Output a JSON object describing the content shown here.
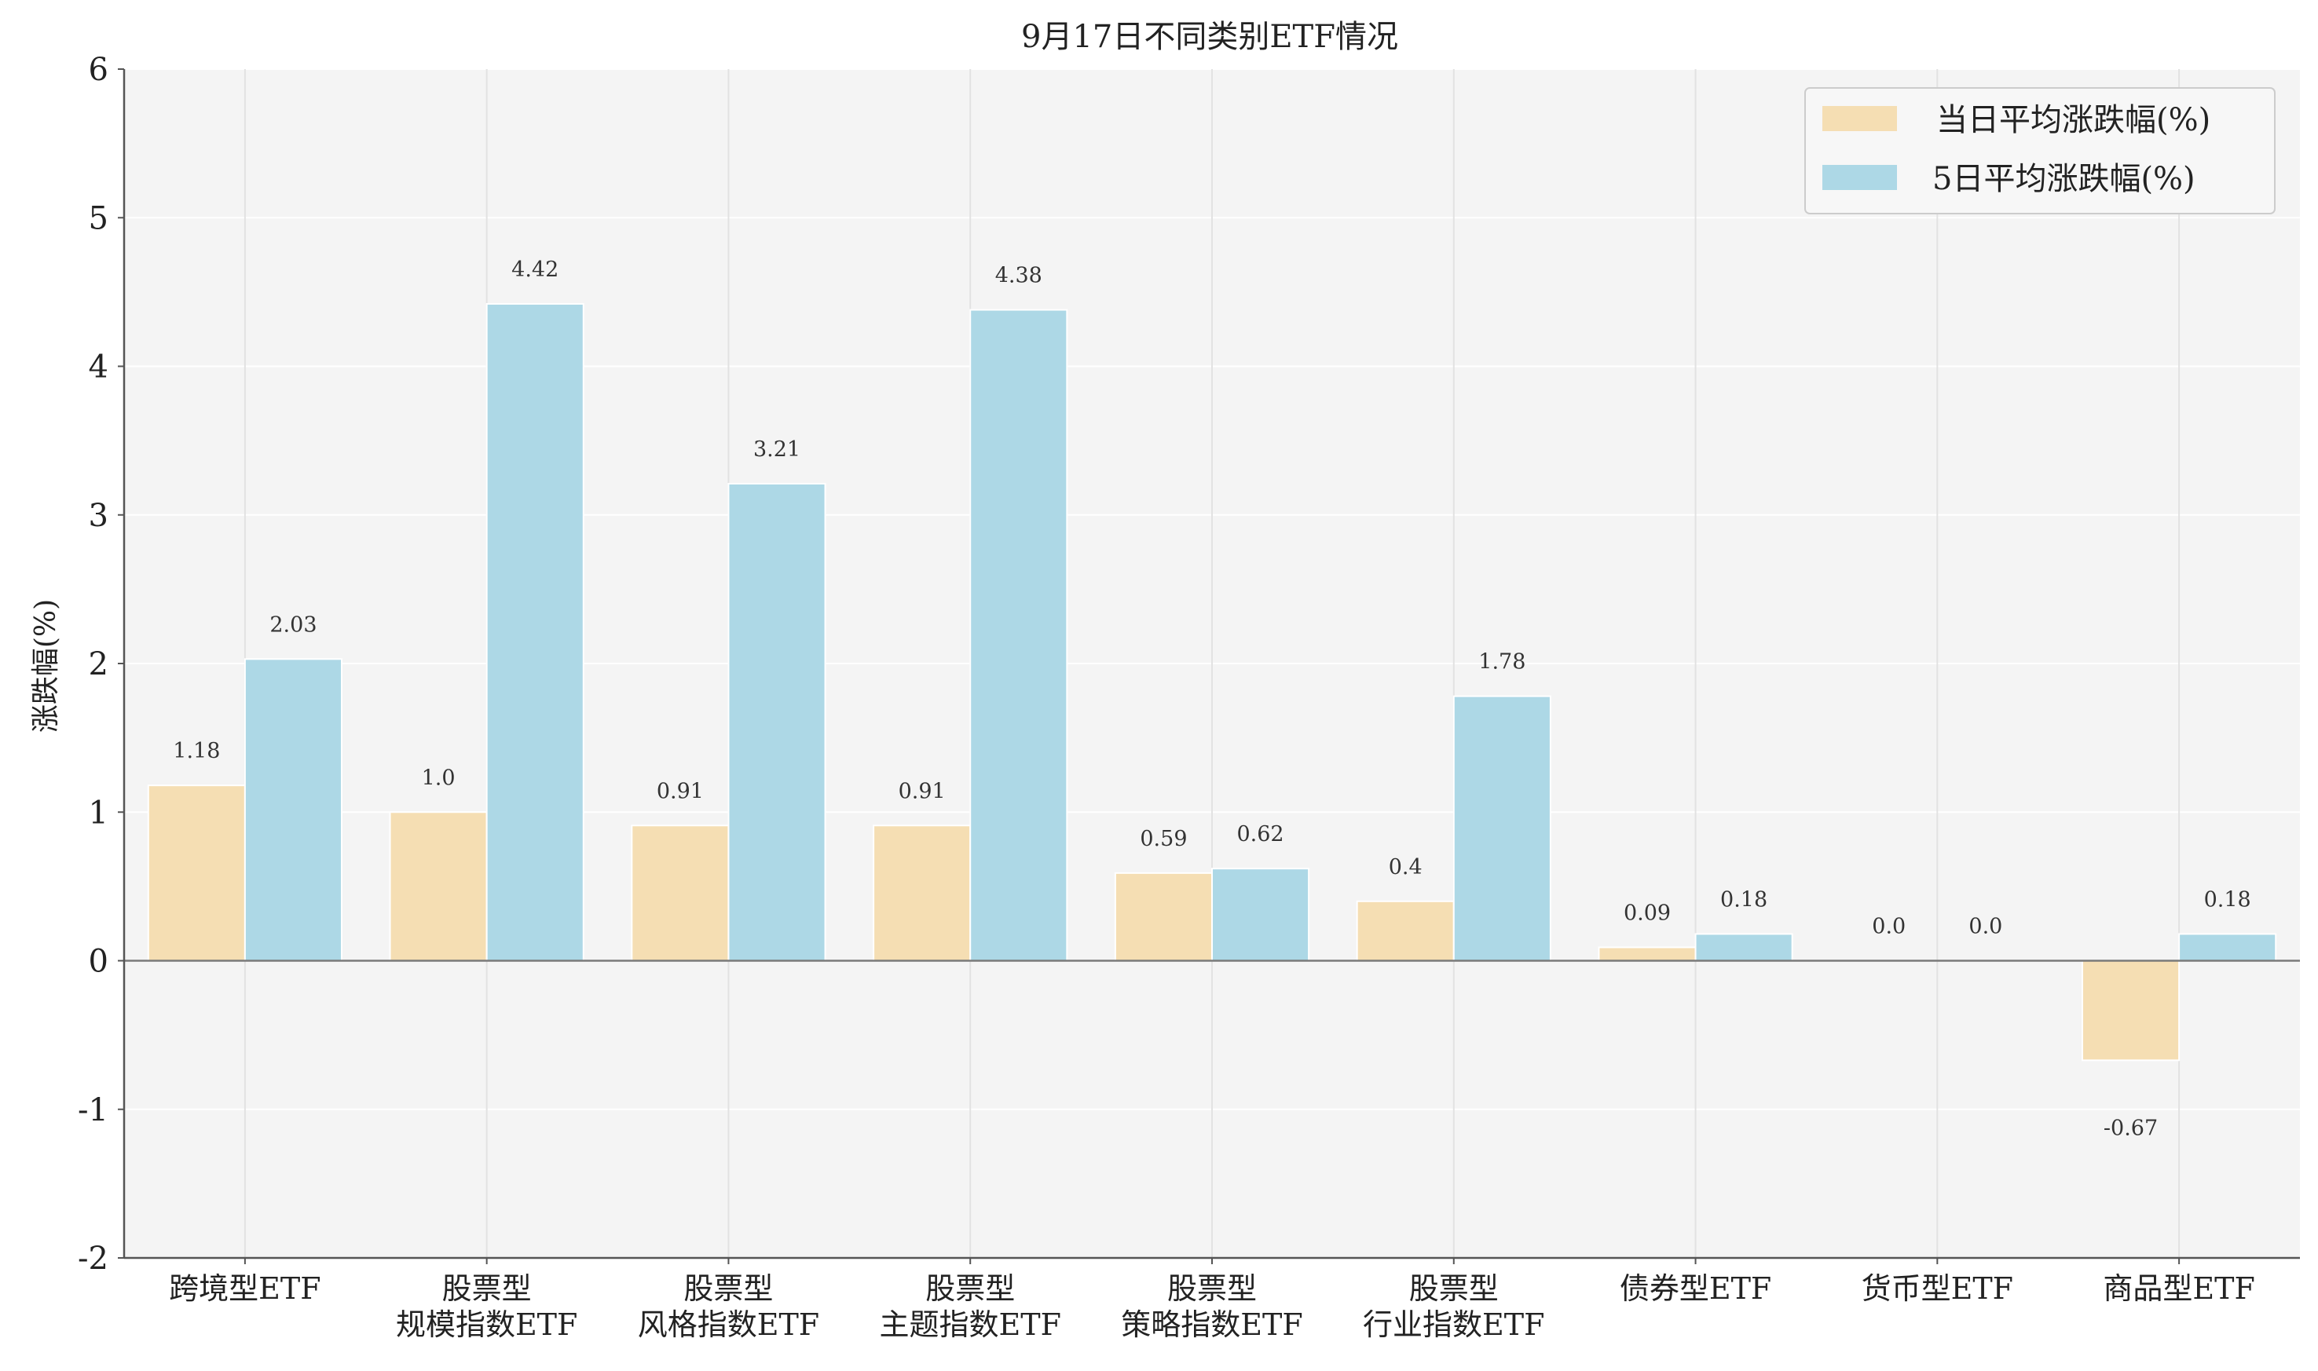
{
  "chart_data": {
    "type": "bar",
    "title": "9月17日不同类别ETF情况",
    "ylabel": "涨跌幅(%)",
    "ylim": [
      -2,
      6
    ],
    "yticks": [
      -2,
      -1,
      0,
      1,
      2,
      3,
      4,
      5,
      6
    ],
    "categories": [
      [
        "跨境型ETF"
      ],
      [
        "股票型",
        "规模指数ETF"
      ],
      [
        "股票型",
        "风格指数ETF"
      ],
      [
        "股票型",
        "主题指数ETF"
      ],
      [
        "股票型",
        "策略指数ETF"
      ],
      [
        "股票型",
        "行业指数ETF"
      ],
      [
        "债券型ETF"
      ],
      [
        "货币型ETF"
      ],
      [
        "商品型ETF"
      ]
    ],
    "series": [
      {
        "name": "当日平均涨跌幅(%)",
        "color": "#f5deb3",
        "values": [
          1.18,
          1.0,
          0.91,
          0.91,
          0.59,
          0.4,
          0.09,
          0.0,
          -0.67
        ],
        "labels": [
          "1.18",
          "1.0",
          "0.91",
          "0.91",
          "0.59",
          "0.4",
          "0.09",
          "0.0",
          "-0.67"
        ]
      },
      {
        "name": "5日平均涨跌幅(%)",
        "color": "#add8e6",
        "values": [
          2.03,
          4.42,
          3.21,
          4.38,
          0.62,
          1.78,
          0.18,
          0.0,
          0.18
        ],
        "labels": [
          "2.03",
          "4.42",
          "3.21",
          "4.38",
          "0.62",
          "1.78",
          "0.18",
          "0.0",
          "0.18"
        ]
      }
    ],
    "grid": true,
    "legend": "top-right",
    "background": "#f4f4f4"
  }
}
